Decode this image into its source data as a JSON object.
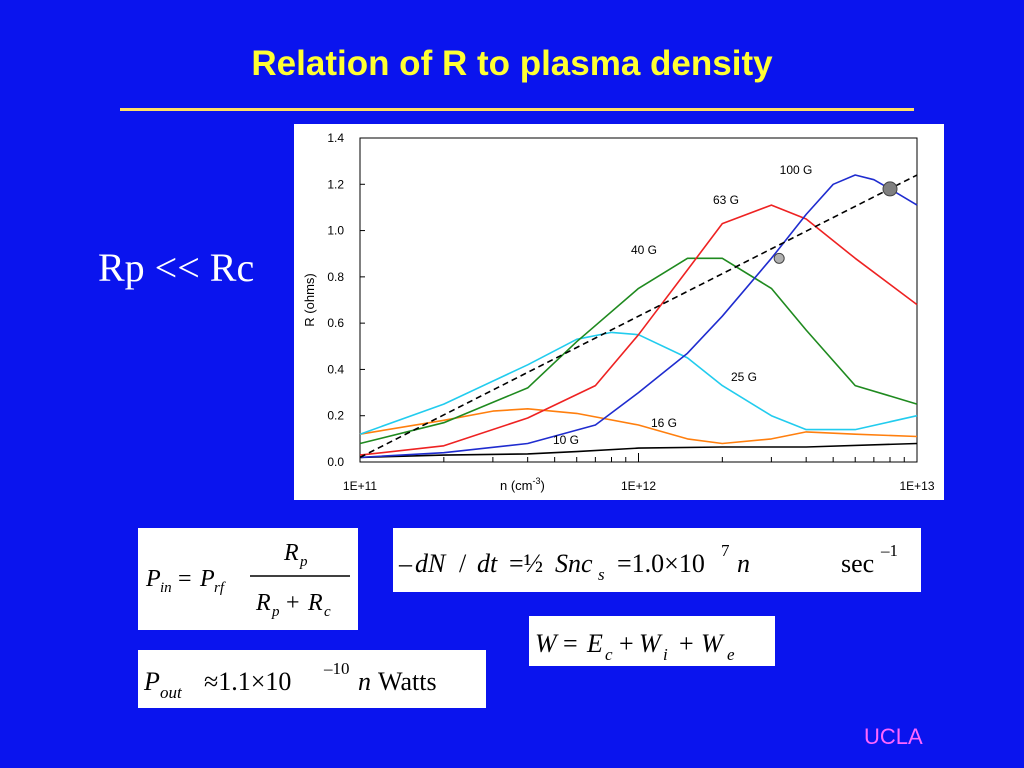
{
  "slide": {
    "title": "Relation of R to plasma density",
    "side_text": "Rp << Rc",
    "footer": "UCLA"
  },
  "colors": {
    "background": "#0a14ee",
    "title": "#ffff33",
    "footer": "#ff66ff"
  },
  "chart_data": {
    "type": "line",
    "ylabel": "R (ohms)",
    "xlabel_base": "n (cm",
    "xlabel_sup": "-3",
    "xlabel_close": ")",
    "x_scale": "log",
    "xlim": [
      100000000000.0,
      10000000000000.0
    ],
    "ylim": [
      0,
      1.4
    ],
    "x_tick_labels": [
      "1E+11",
      "1E+12",
      "1E+13"
    ],
    "y_tick_labels": [
      "0.0",
      "0.2",
      "0.4",
      "0.6",
      "0.8",
      "1.0",
      "1.2",
      "1.4"
    ],
    "grid": false,
    "series": [
      {
        "name": "10 G",
        "color": "#000000",
        "x": [
          100000000000.0,
          200000000000.0,
          400000000000.0,
          600000000000.0,
          1000000000000.0,
          2000000000000.0,
          4000000000000.0,
          10000000000000.0
        ],
        "y": [
          0.02,
          0.03,
          0.035,
          0.045,
          0.06,
          0.065,
          0.065,
          0.08
        ]
      },
      {
        "name": "16 G",
        "color": "#ff7f0e",
        "x": [
          100000000000.0,
          200000000000.0,
          300000000000.0,
          400000000000.0,
          600000000000.0,
          1000000000000.0,
          1500000000000.0,
          2000000000000.0,
          3000000000000.0,
          4000000000000.0,
          6000000000000.0,
          10000000000000.0
        ],
        "y": [
          0.12,
          0.18,
          0.22,
          0.23,
          0.21,
          0.16,
          0.1,
          0.08,
          0.1,
          0.13,
          0.12,
          0.11
        ]
      },
      {
        "name": "25 G",
        "color": "#22ccee",
        "x": [
          100000000000.0,
          200000000000.0,
          400000000000.0,
          600000000000.0,
          800000000000.0,
          1000000000000.0,
          1500000000000.0,
          2000000000000.0,
          3000000000000.0,
          4000000000000.0,
          6000000000000.0,
          10000000000000.0
        ],
        "y": [
          0.12,
          0.25,
          0.42,
          0.53,
          0.56,
          0.55,
          0.45,
          0.33,
          0.2,
          0.14,
          0.14,
          0.2
        ]
      },
      {
        "name": "40 G",
        "color": "#1f8a1f",
        "x": [
          100000000000.0,
          200000000000.0,
          400000000000.0,
          600000000000.0,
          1000000000000.0,
          1500000000000.0,
          2000000000000.0,
          3000000000000.0,
          4000000000000.0,
          6000000000000.0,
          10000000000000.0
        ],
        "y": [
          0.08,
          0.17,
          0.32,
          0.52,
          0.75,
          0.88,
          0.88,
          0.75,
          0.57,
          0.33,
          0.25
        ]
      },
      {
        "name": "63 G",
        "color": "#ee2222",
        "x": [
          100000000000.0,
          200000000000.0,
          400000000000.0,
          700000000000.0,
          1000000000000.0,
          1500000000000.0,
          2000000000000.0,
          3000000000000.0,
          4000000000000.0,
          6000000000000.0,
          10000000000000.0
        ],
        "y": [
          0.03,
          0.07,
          0.19,
          0.33,
          0.55,
          0.83,
          1.03,
          1.11,
          1.05,
          0.88,
          0.68
        ]
      },
      {
        "name": "100 G",
        "color": "#1f2ccf",
        "x": [
          100000000000.0,
          200000000000.0,
          400000000000.0,
          700000000000.0,
          1000000000000.0,
          1500000000000.0,
          2000000000000.0,
          3000000000000.0,
          4000000000000.0,
          5000000000000.0,
          6000000000000.0,
          7000000000000.0,
          8000000000000.0,
          10000000000000.0
        ],
        "y": [
          0.02,
          0.04,
          0.08,
          0.16,
          0.3,
          0.47,
          0.63,
          0.88,
          1.07,
          1.2,
          1.24,
          1.22,
          1.18,
          1.11
        ]
      }
    ],
    "reference_line": {
      "style": "dashed",
      "color": "#000000",
      "x": [
        100000000000.0,
        10000000000000.0
      ],
      "y": [
        0.02,
        1.24
      ]
    },
    "markers": [
      {
        "x": 3200000000000.0,
        "y": 0.88,
        "color": "#b0b0b0",
        "size": "small"
      },
      {
        "x": 8000000000000.0,
        "y": 1.18,
        "color": "#808080",
        "size": "large"
      }
    ]
  }
}
